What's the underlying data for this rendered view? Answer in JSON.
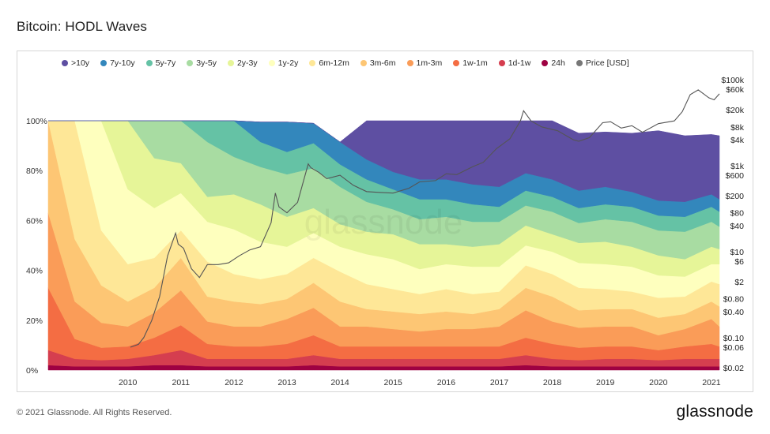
{
  "page": {
    "title": "Bitcoin: HODL Waves",
    "copyright": "© 2021 Glassnode. All Rights Reserved.",
    "brand": "glassnode",
    "watermark": "glassnode"
  },
  "chart_data": {
    "type": "area",
    "title": "Bitcoin: HODL Waves",
    "xlabel": "",
    "ylabel": "",
    "stacked": true,
    "x_start": "2009.0",
    "x_end": "2021.65",
    "x_tick_labels": [
      "2010",
      "2011",
      "2012",
      "2013",
      "2014",
      "2015",
      "2016",
      "2017",
      "2018",
      "2019",
      "2020",
      "2021"
    ],
    "x_ticks": [
      2010,
      2011,
      2012,
      2013,
      2014,
      2015,
      2016,
      2017,
      2018,
      2019,
      2020,
      2021
    ],
    "ylim_left": [
      0,
      100
    ],
    "y_left_tick_labels": [
      "0%",
      "20%",
      "40%",
      "60%",
      "80%",
      "100%"
    ],
    "y_left_ticks": [
      0,
      20,
      40,
      60,
      80,
      100
    ],
    "y_right_scale": "log",
    "y_right_tick_labels": [
      "$0.02",
      "$0.06",
      "$0.10",
      "$0.40",
      "$0.80",
      "$2",
      "$6",
      "$10",
      "$40",
      "$80",
      "$200",
      "$600",
      "$1k",
      "$4k",
      "$8k",
      "$20k",
      "$60k",
      "$100k"
    ],
    "y_right_ticks": [
      0.02,
      0.06,
      0.1,
      0.4,
      0.8,
      2,
      6,
      10,
      40,
      80,
      200,
      600,
      1000,
      4000,
      8000,
      20000,
      60000,
      100000
    ],
    "legend_position": "top",
    "x": [
      2009.0,
      2009.5,
      2010.0,
      2010.5,
      2011.0,
      2011.5,
      2012.0,
      2012.5,
      2013.0,
      2013.5,
      2014.0,
      2014.5,
      2015.0,
      2015.5,
      2016.0,
      2016.5,
      2017.0,
      2017.5,
      2018.0,
      2018.5,
      2019.0,
      2019.5,
      2020.0,
      2020.5,
      2021.0,
      2021.5,
      2021.65
    ],
    "series": [
      {
        "name": "24h",
        "color": "#9e0142",
        "values": [
          2,
          1.5,
          1.5,
          1.5,
          2,
          2,
          1.5,
          1.5,
          1.5,
          1.5,
          2,
          1.5,
          1.5,
          1.5,
          1.5,
          1.5,
          1.5,
          1.5,
          2,
          1.5,
          1.5,
          1.5,
          1.5,
          1.5,
          1.5,
          1.5,
          1.5
        ]
      },
      {
        "name": "1d-1w",
        "color": "#d53e4f",
        "values": [
          6,
          3,
          2.5,
          3,
          4,
          6,
          3,
          3,
          3,
          3,
          4,
          3,
          3,
          3,
          3,
          3,
          3,
          3,
          4,
          3,
          2.5,
          3,
          3,
          2.5,
          3,
          3,
          3
        ]
      },
      {
        "name": "1w-1m",
        "color": "#f46d43",
        "values": [
          25,
          8,
          5,
          5,
          7,
          10,
          6,
          5,
          5,
          6,
          8,
          5,
          5,
          5,
          5,
          5,
          5,
          5,
          7,
          6,
          5,
          5,
          5,
          4,
          5,
          6,
          5
        ]
      },
      {
        "name": "1m-3m",
        "color": "#fa9c58",
        "values": [
          30,
          15,
          10,
          8,
          10,
          14,
          9,
          8,
          8,
          10,
          11,
          8,
          8,
          7,
          6,
          7,
          7,
          8,
          11,
          9,
          8,
          8,
          8,
          6,
          7,
          10,
          8
        ]
      },
      {
        "name": "3m-6m",
        "color": "#fdc674",
        "values": [
          37,
          25,
          15,
          10,
          10,
          13,
          10,
          10,
          9,
          8,
          10,
          10,
          7,
          7,
          7,
          7,
          6,
          7,
          9,
          10,
          7,
          7,
          7,
          7,
          6,
          7,
          8
        ]
      },
      {
        "name": "6m-12m",
        "color": "#fee797",
        "values": [
          0,
          48,
          22,
          15,
          12,
          11,
          14,
          11,
          10,
          10,
          10,
          12,
          10,
          9,
          8,
          9,
          8,
          7,
          9,
          9,
          9,
          8,
          7,
          8,
          7,
          8,
          9
        ]
      },
      {
        "name": "1y-2y",
        "color": "#feffbe",
        "values": [
          0,
          0,
          44,
          30,
          20,
          15,
          16,
          18,
          15,
          11,
          10,
          10,
          12,
          12,
          10,
          10,
          11,
          10,
          8,
          9,
          10,
          10,
          10,
          9,
          8,
          7,
          8
        ]
      },
      {
        "name": "2y-3y",
        "color": "#e6f598",
        "values": [
          0,
          0,
          0,
          28,
          20,
          12,
          10,
          14,
          15,
          12,
          10,
          9,
          9,
          10,
          10,
          8,
          8,
          9,
          8,
          7,
          8,
          9,
          8,
          8,
          7,
          7,
          6
        ]
      },
      {
        "name": "3y-5y",
        "color": "#a8dca2",
        "values": [
          0,
          0,
          0,
          0,
          15,
          17,
          22,
          15,
          15,
          17,
          16,
          15,
          12,
          10,
          10,
          11,
          10,
          9,
          8,
          9,
          8,
          9,
          10,
          10,
          11,
          10,
          9
        ]
      },
      {
        "name": "5y-7y",
        "color": "#65c2a5",
        "values": [
          0,
          0,
          0,
          0,
          0,
          0,
          9,
          15,
          10,
          9,
          10,
          9,
          9,
          8,
          8,
          7,
          7,
          6,
          6,
          6,
          6,
          6,
          6,
          6,
          6,
          6,
          6
        ]
      },
      {
        "name": "7y-10y",
        "color": "#3387bc",
        "values": [
          0,
          0,
          0,
          0,
          0,
          0,
          0,
          0,
          8,
          12,
          8,
          9,
          8,
          7,
          8,
          8,
          8,
          8,
          7,
          7,
          7,
          7,
          6,
          6,
          6,
          5,
          5
        ]
      },
      {
        "name": "&gt;10y",
        "color": "#5e4fa2",
        "values": [
          0,
          0,
          0,
          0,
          0,
          0,
          0,
          0,
          0,
          0,
          0,
          0,
          15.5,
          20.5,
          23.5,
          23.5,
          25.5,
          26.5,
          21,
          24.5,
          23,
          22,
          23.5,
          28,
          26.5,
          24,
          25.5
        ]
      }
    ],
    "legend": [
      {
        "label": ">10y",
        "color": "#5e4fa2"
      },
      {
        "label": "7y-10y",
        "color": "#3387bc"
      },
      {
        "label": "5y-7y",
        "color": "#65c2a5"
      },
      {
        "label": "3y-5y",
        "color": "#a8dca2"
      },
      {
        "label": "2y-3y",
        "color": "#e6f598"
      },
      {
        "label": "1y-2y",
        "color": "#feffbe"
      },
      {
        "label": "6m-12m",
        "color": "#fee797"
      },
      {
        "label": "3m-6m",
        "color": "#fdc674"
      },
      {
        "label": "1m-3m",
        "color": "#fa9c58"
      },
      {
        "label": "1w-1m",
        "color": "#f46d43"
      },
      {
        "label": "1d-1w",
        "color": "#d53e4f"
      },
      {
        "label": "24h",
        "color": "#9e0142"
      },
      {
        "label": "Price [USD]",
        "color": "#777777"
      }
    ],
    "price_series": {
      "name": "Price [USD]",
      "color": "#555555",
      "x": [
        2010.55,
        2010.7,
        2010.8,
        2010.95,
        2011.1,
        2011.25,
        2011.4,
        2011.45,
        2011.55,
        2011.7,
        2011.85,
        2012.0,
        2012.2,
        2012.4,
        2012.6,
        2012.8,
        2013.0,
        2013.2,
        2013.28,
        2013.35,
        2013.5,
        2013.7,
        2013.9,
        2013.95,
        2014.1,
        2014.25,
        2014.5,
        2014.75,
        2015.0,
        2015.2,
        2015.5,
        2015.8,
        2016.0,
        2016.3,
        2016.5,
        2016.7,
        2017.0,
        2017.2,
        2017.45,
        2017.7,
        2017.9,
        2017.96,
        2018.1,
        2018.3,
        2018.6,
        2018.9,
        2019.0,
        2019.2,
        2019.45,
        2019.6,
        2019.8,
        2020.0,
        2020.2,
        2020.5,
        2020.8,
        2020.95,
        2021.1,
        2021.25,
        2021.45,
        2021.55,
        2021.65
      ],
      "values": [
        0.06,
        0.07,
        0.1,
        0.25,
        0.9,
        8,
        27,
        15,
        12,
        4,
        2.5,
        5,
        5,
        5.5,
        8,
        11,
        13,
        47,
        230,
        110,
        80,
        140,
        1100,
        900,
        700,
        500,
        600,
        350,
        250,
        240,
        230,
        300,
        420,
        450,
        650,
        620,
        950,
        1200,
        2500,
        4200,
        11000,
        19000,
        11000,
        8000,
        6500,
        4000,
        3700,
        4500,
        10000,
        10500,
        7500,
        8500,
        6000,
        9500,
        11000,
        18000,
        45000,
        58000,
        38000,
        34000,
        47000
      ]
    }
  }
}
